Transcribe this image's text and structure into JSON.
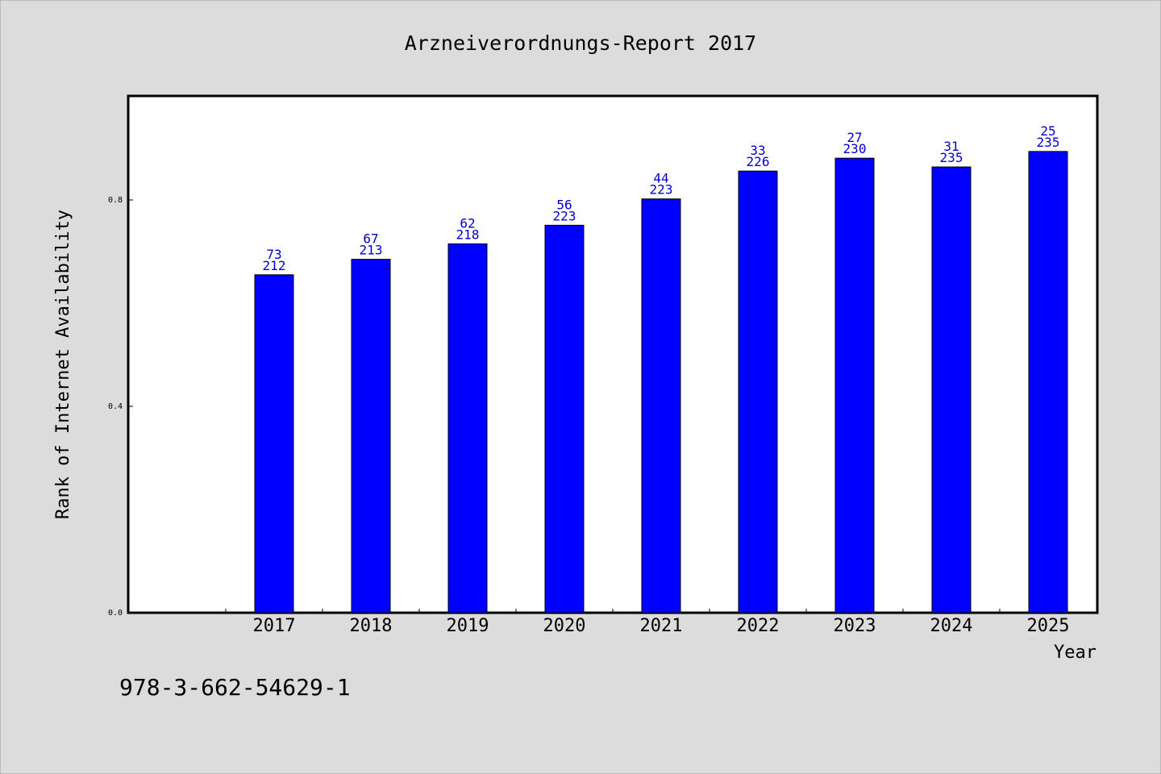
{
  "chart_data": {
    "type": "bar",
    "title": "Arzneiverordnungs-Report 2017",
    "xlabel": "Year",
    "ylabel": "Rank of Internet Availability",
    "categories": [
      "2017",
      "2018",
      "2019",
      "2020",
      "2021",
      "2022",
      "2023",
      "2024",
      "2025"
    ],
    "values": [
      0.655,
      0.685,
      0.715,
      0.751,
      0.802,
      0.856,
      0.881,
      0.864,
      0.894
    ],
    "rank_labels": [
      "73",
      "67",
      "62",
      "56",
      "44",
      "33",
      "27",
      "31",
      "25"
    ],
    "total_labels": [
      "212",
      "213",
      "218",
      "223",
      "223",
      "226",
      "230",
      "235",
      "235"
    ],
    "ylim": [
      0,
      1.0
    ],
    "yticks": [
      0.0,
      0.4,
      0.8
    ],
    "ytick_labels": [
      "0.0",
      "0.4",
      "0.8"
    ],
    "grid": false,
    "legend": "none"
  },
  "footer": {
    "isbn": "978-3-662-54629-1"
  },
  "colors": {
    "background": "#dcdcdc",
    "plot_background": "#ffffff",
    "bar": "#0000ff",
    "bar_label": "#0000cc",
    "axis": "#000000"
  }
}
